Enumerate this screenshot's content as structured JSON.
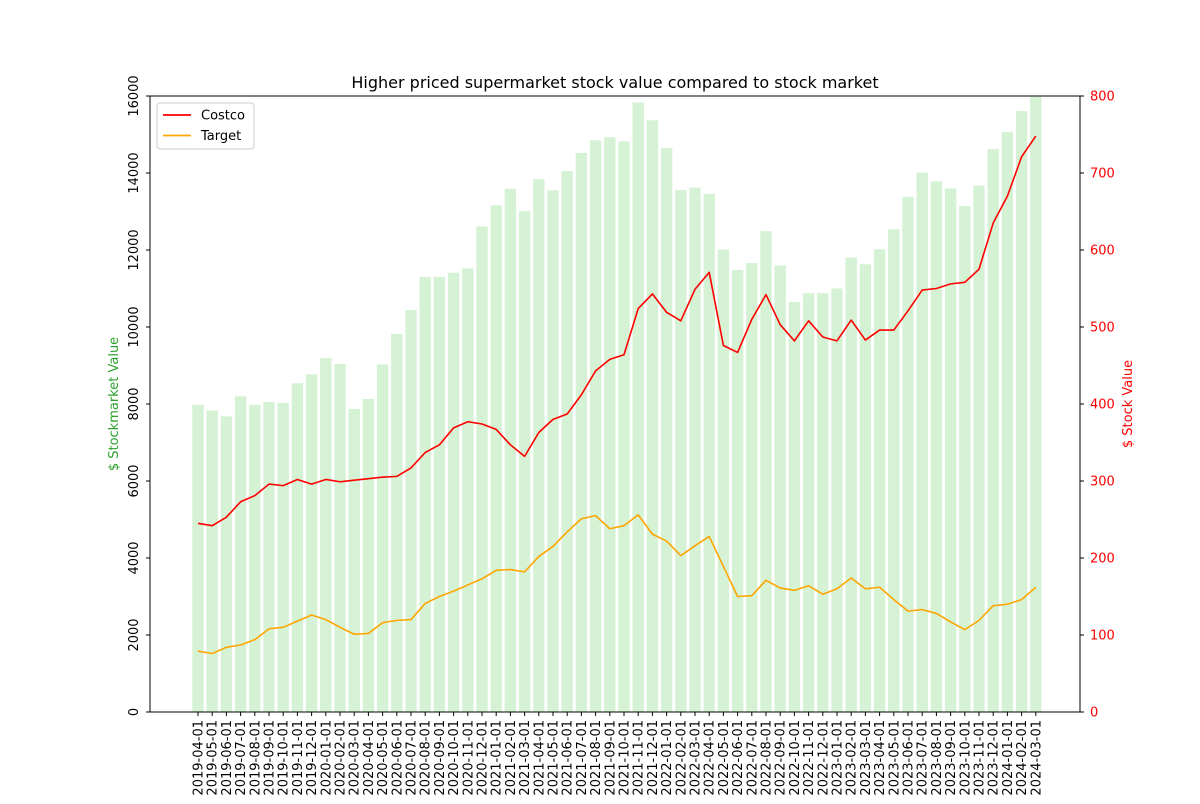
{
  "chart_data": {
    "type": "bar+line",
    "title": "Higher priced supermarket stock value compared to stock market",
    "left_axis": {
      "label": "$ Stockmarket Value",
      "ylim": [
        0,
        16000
      ],
      "ticks": [
        0,
        2000,
        4000,
        6000,
        8000,
        10000,
        12000,
        14000,
        16000
      ],
      "color": "#2ca02c"
    },
    "right_axis": {
      "label": "$ Stock Value",
      "ylim": [
        0,
        800
      ],
      "ticks": [
        0,
        100,
        200,
        300,
        400,
        500,
        600,
        700,
        800
      ],
      "color": "#ff0000"
    },
    "legend": {
      "position": "top-left"
    },
    "categories": [
      "2019-04-01",
      "2019-05-01",
      "2019-06-01",
      "2019-07-01",
      "2019-08-01",
      "2019-09-01",
      "2019-10-01",
      "2019-11-01",
      "2019-12-01",
      "2020-01-01",
      "2020-02-01",
      "2020-03-01",
      "2020-04-01",
      "2020-05-01",
      "2020-06-01",
      "2020-07-01",
      "2020-08-01",
      "2020-09-01",
      "2020-10-01",
      "2020-11-01",
      "2020-12-01",
      "2021-01-01",
      "2021-02-01",
      "2021-03-01",
      "2021-04-01",
      "2021-05-01",
      "2021-06-01",
      "2021-07-01",
      "2021-08-01",
      "2021-09-01",
      "2021-10-01",
      "2021-11-01",
      "2021-12-01",
      "2022-01-01",
      "2022-02-01",
      "2022-03-01",
      "2022-04-01",
      "2022-05-01",
      "2022-06-01",
      "2022-07-01",
      "2022-08-01",
      "2022-09-01",
      "2022-10-01",
      "2022-11-01",
      "2022-12-01",
      "2023-01-01",
      "2023-02-01",
      "2023-03-01",
      "2023-04-01",
      "2023-05-01",
      "2023-06-01",
      "2023-07-01",
      "2023-08-01",
      "2023-09-01",
      "2023-10-01",
      "2023-11-01",
      "2023-12-01",
      "2024-01-01",
      "2024-02-01",
      "2024-03-01"
    ],
    "bars": {
      "axis": "left",
      "color": "#d5f2d5",
      "values": [
        7980,
        7830,
        7680,
        8200,
        7980,
        8050,
        8030,
        8540,
        8770,
        9190,
        9040,
        7870,
        8130,
        9030,
        9820,
        10440,
        11300,
        11300,
        11410,
        11520,
        12610,
        13160,
        13590,
        13010,
        13840,
        13550,
        14050,
        14520,
        14850,
        14930,
        14820,
        15830,
        15370,
        14650,
        13560,
        13620,
        13460,
        12010,
        11480,
        11660,
        12490,
        11600,
        10650,
        10880,
        10880,
        11000,
        11800,
        11630,
        12020,
        12540,
        13380,
        14010,
        13780,
        13600,
        13140,
        13670,
        14620,
        15070,
        15610,
        15980
      ]
    },
    "series": [
      {
        "name": "Costco",
        "axis": "right",
        "color": "#ff0000",
        "values": [
          245,
          242,
          253,
          273,
          281,
          296,
          294,
          302,
          296,
          302,
          299,
          301,
          303,
          305,
          306,
          317,
          337,
          347,
          369,
          377,
          374,
          367,
          347,
          332,
          363,
          380,
          387,
          412,
          443,
          458,
          464,
          524,
          543,
          519,
          508,
          549,
          571,
          476,
          467,
          510,
          542,
          503,
          482,
          508,
          487,
          482,
          509,
          483,
          496,
          496,
          521,
          548,
          550,
          556,
          558,
          575,
          635,
          670,
          721,
          748
        ]
      },
      {
        "name": "Target",
        "axis": "right",
        "color": "#ffa500",
        "values": [
          79,
          76,
          84,
          87,
          94,
          108,
          110,
          118,
          126,
          120,
          110,
          101,
          102,
          116,
          119,
          120,
          141,
          150,
          157,
          165,
          173,
          184,
          185,
          182,
          202,
          215,
          234,
          251,
          255,
          238,
          242,
          256,
          231,
          222,
          203,
          216,
          228,
          189,
          150,
          151,
          171,
          161,
          158,
          164,
          153,
          160,
          174,
          160,
          162,
          146,
          131,
          133,
          128,
          117,
          107,
          119,
          138,
          140,
          146,
          162
        ]
      }
    ]
  }
}
